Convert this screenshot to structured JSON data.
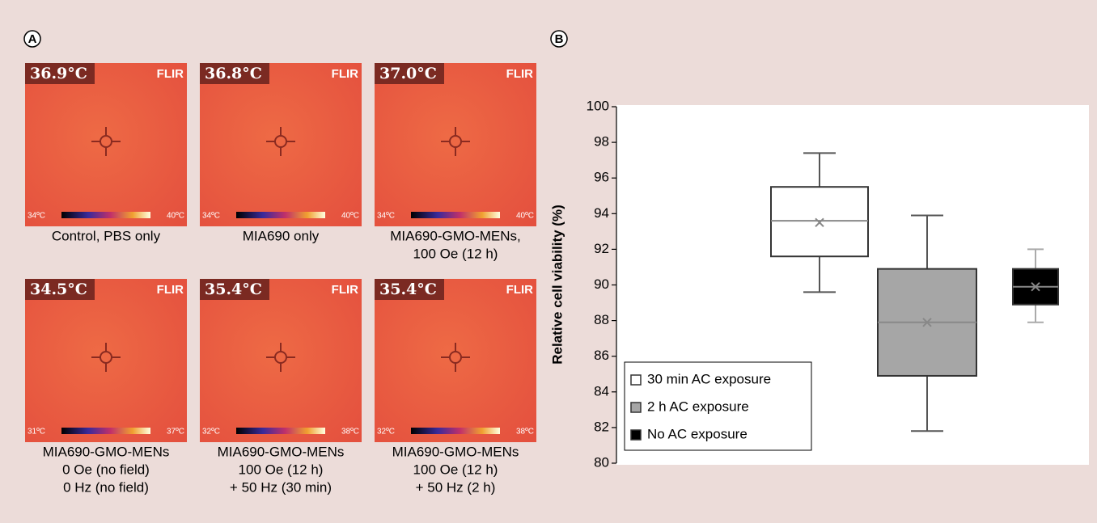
{
  "panel_a": {
    "label": "A",
    "brand": "FLIR",
    "images": [
      {
        "temperature": "36.9°C",
        "scale_min": "34ºC",
        "scale_max": "40ºC",
        "caption": [
          "Control, PBS only"
        ]
      },
      {
        "temperature": "36.8°C",
        "scale_min": "34ºC",
        "scale_max": "40ºC",
        "caption": [
          "MIA690 only"
        ]
      },
      {
        "temperature": "37.0°C",
        "scale_min": "34ºC",
        "scale_max": "40ºC",
        "caption": [
          "MIA690-GMO-MENs,",
          "100 Oe (12 h)"
        ]
      },
      {
        "temperature": "34.5°C",
        "scale_min": "31ºC",
        "scale_max": "37ºC",
        "caption": [
          "MIA690-GMO-MENs",
          "0 Oe (no field)",
          "0 Hz (no field)"
        ]
      },
      {
        "temperature": "35.4°C",
        "scale_min": "32ºC",
        "scale_max": "38ºC",
        "caption": [
          "MIA690-GMO-MENs",
          "100 Oe (12 h)",
          "+ 50 Hz (30 min)"
        ]
      },
      {
        "temperature": "35.4°C",
        "scale_min": "32ºC",
        "scale_max": "38ºC",
        "caption": [
          "MIA690-GMO-MENs",
          "100 Oe (12 h)",
          "+ 50 Hz (2 h)"
        ]
      }
    ]
  },
  "chart_data": {
    "type": "box",
    "panel_label": "B",
    "y_label": "Relative cell viability (%)",
    "ylim": [
      80,
      100
    ],
    "yticks": [
      80,
      82,
      84,
      86,
      88,
      90,
      92,
      94,
      96,
      98,
      100
    ],
    "legend_position": "lower left",
    "series": [
      {
        "name": "30 min AC exposure",
        "color": "#ffffff",
        "min": 89.6,
        "q1": 91.6,
        "median": 93.6,
        "q3": 95.5,
        "max": 97.4,
        "mean": 93.5
      },
      {
        "name": "2 h AC exposure",
        "color": "#a6a6a6",
        "min": 81.8,
        "q1": 84.9,
        "median": 87.9,
        "q3": 90.9,
        "max": 93.9,
        "mean": 87.9
      },
      {
        "name": "No AC exposure",
        "color": "#000000",
        "min": 87.9,
        "q1": 88.9,
        "median": 89.9,
        "q3": 90.9,
        "max": 92.0,
        "mean": 89.9
      }
    ]
  }
}
